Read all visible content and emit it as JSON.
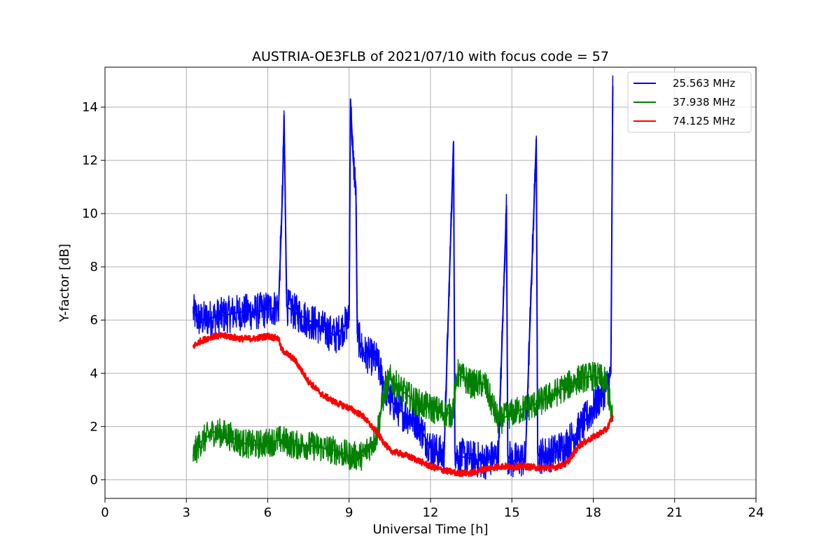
{
  "chart_data": {
    "type": "line",
    "title": "AUSTRIA-OE3FLB of 2021/07/10 with focus code = 57",
    "xlabel": "Universal Time [h]",
    "ylabel": "Y-factor [dB]",
    "xlim": [
      0,
      24
    ],
    "ylim": [
      -0.7,
      15.5
    ],
    "xticks": [
      0,
      3,
      6,
      9,
      12,
      15,
      18,
      21,
      24
    ],
    "yticks": [
      0,
      2,
      4,
      6,
      8,
      10,
      12,
      14
    ],
    "grid": true,
    "legend_position": "top-right",
    "series": [
      {
        "name": "25.563 MHz",
        "color": "#0000ff",
        "x": [
          3.25,
          3.5,
          4.0,
          4.5,
          5.0,
          5.5,
          6.0,
          6.4,
          6.55,
          6.6,
          6.7,
          7.0,
          7.5,
          8.0,
          8.5,
          9.0,
          9.05,
          9.15,
          9.25,
          9.3,
          9.5,
          10.0,
          10.5,
          11.0,
          11.5,
          12.0,
          12.5,
          12.85,
          12.9,
          13.0,
          13.5,
          14.0,
          14.5,
          14.8,
          14.85,
          15.0,
          15.5,
          15.9,
          15.95,
          16.0,
          16.5,
          17.0,
          17.5,
          18.0,
          18.3,
          18.5,
          18.65,
          18.72
        ],
        "y": [
          6.3,
          6.0,
          6.1,
          6.2,
          6.3,
          6.3,
          6.4,
          6.5,
          11.0,
          13.7,
          6.5,
          6.3,
          6.0,
          5.7,
          5.4,
          6.0,
          14.3,
          12.0,
          11.0,
          5.5,
          4.8,
          4.5,
          3.0,
          2.5,
          2.2,
          1.2,
          0.9,
          12.7,
          1.0,
          0.9,
          0.8,
          0.7,
          0.9,
          10.3,
          0.9,
          0.7,
          0.8,
          12.8,
          1.0,
          0.9,
          1.0,
          1.3,
          1.9,
          2.7,
          3.2,
          3.5,
          4.0,
          14.8
        ]
      },
      {
        "name": "37.938 MHz",
        "color": "#008000",
        "x": [
          3.25,
          3.5,
          4.0,
          4.5,
          5.0,
          5.5,
          6.0,
          6.5,
          7.0,
          7.5,
          8.0,
          8.5,
          9.0,
          9.5,
          10.0,
          10.3,
          10.5,
          11.0,
          11.5,
          12.0,
          12.5,
          12.8,
          13.0,
          13.5,
          14.0,
          14.5,
          15.0,
          15.5,
          16.0,
          16.5,
          17.0,
          17.5,
          18.0,
          18.3,
          18.5,
          18.72
        ],
        "y": [
          0.9,
          1.4,
          1.8,
          1.7,
          1.4,
          1.3,
          1.4,
          1.5,
          1.3,
          1.3,
          1.2,
          1.1,
          0.9,
          0.9,
          1.6,
          3.3,
          3.8,
          3.3,
          2.9,
          2.7,
          2.5,
          2.5,
          4.0,
          3.6,
          3.6,
          2.2,
          2.5,
          2.7,
          2.9,
          3.2,
          3.5,
          3.8,
          3.9,
          3.8,
          3.6,
          2.2
        ]
      },
      {
        "name": "74.125 MHz",
        "color": "#ff0000",
        "x": [
          3.25,
          3.5,
          4.0,
          4.5,
          5.0,
          5.5,
          6.0,
          6.4,
          6.5,
          7.0,
          7.5,
          8.0,
          8.5,
          9.0,
          9.5,
          10.0,
          10.5,
          11.0,
          11.5,
          12.0,
          12.5,
          13.0,
          13.5,
          14.0,
          14.5,
          15.0,
          15.5,
          16.0,
          16.5,
          17.0,
          17.5,
          18.0,
          18.5,
          18.72
        ],
        "y": [
          5.0,
          5.2,
          5.4,
          5.4,
          5.3,
          5.3,
          5.4,
          5.3,
          4.9,
          4.5,
          3.7,
          3.2,
          2.9,
          2.7,
          2.4,
          1.8,
          1.1,
          0.95,
          0.75,
          0.5,
          0.35,
          0.25,
          0.25,
          0.4,
          0.5,
          0.5,
          0.5,
          0.45,
          0.45,
          0.6,
          1.3,
          1.6,
          1.9,
          2.4
        ]
      }
    ]
  }
}
